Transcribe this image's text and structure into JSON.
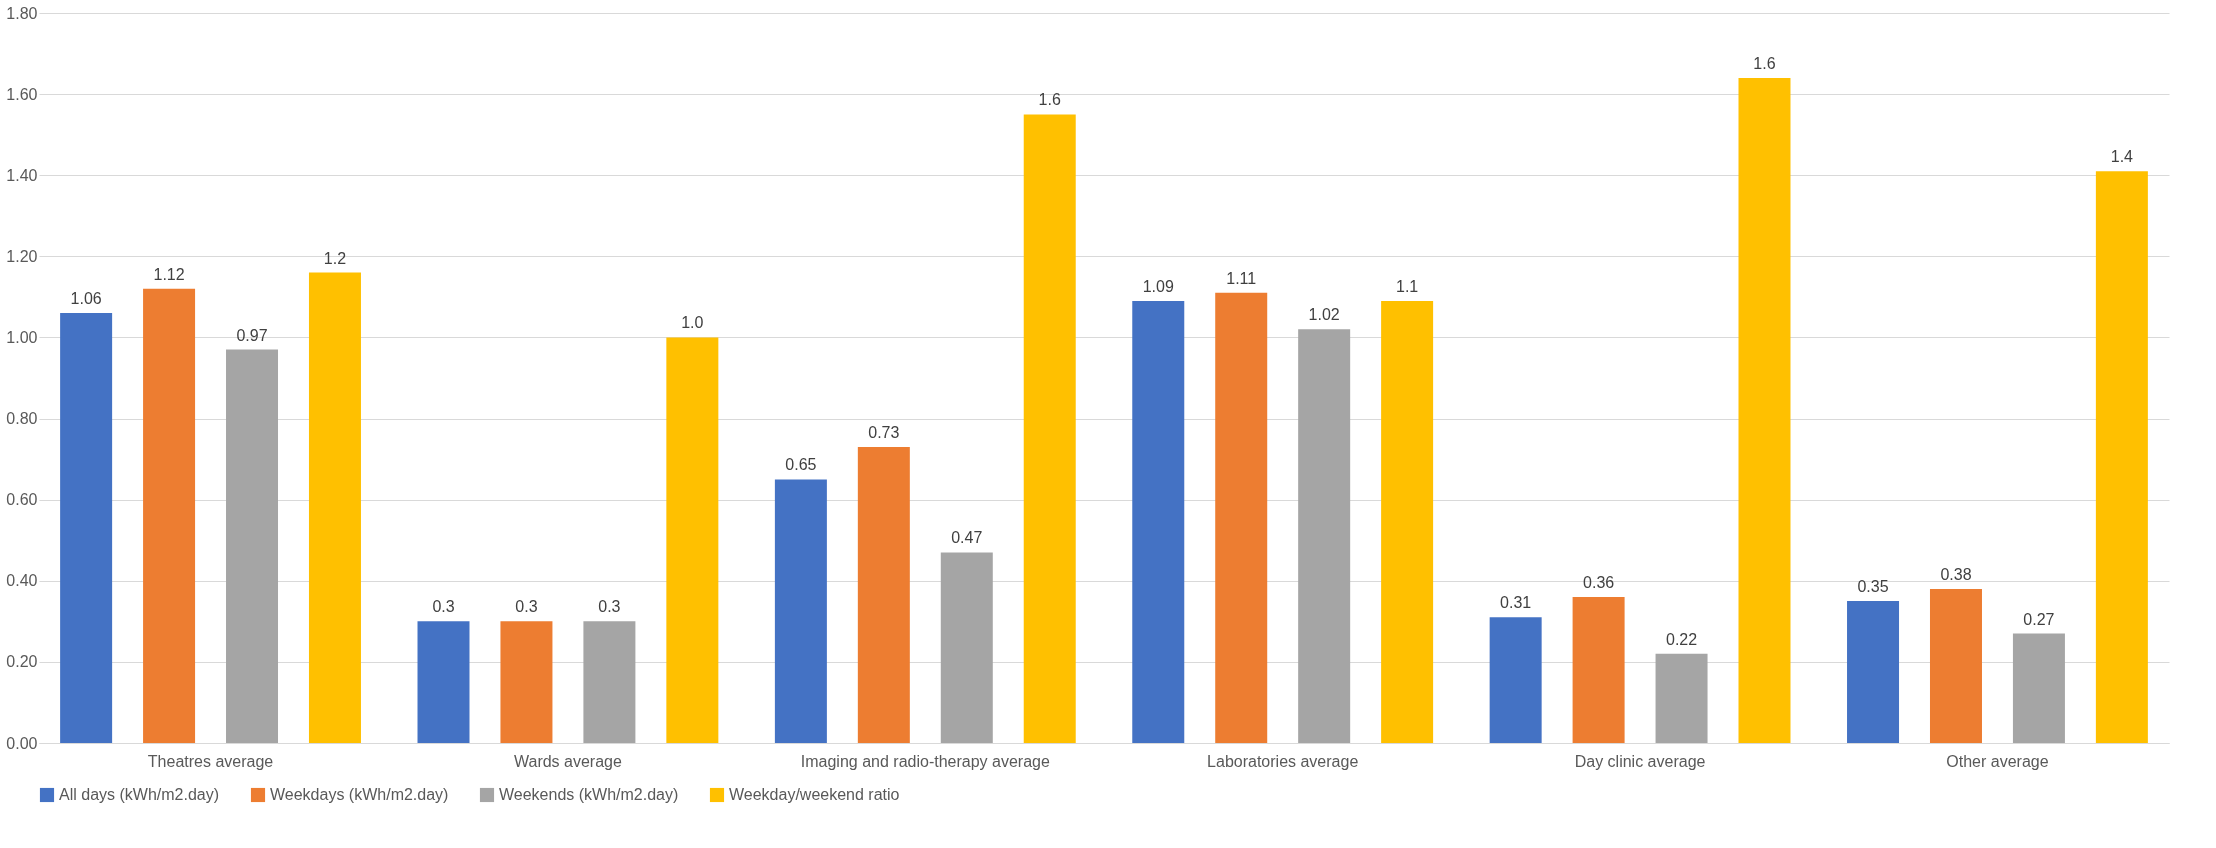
{
  "chart_data": {
    "type": "bar",
    "categories": [
      "Theatres average",
      "Wards average",
      "Imaging and radio-therapy average",
      "Laboratories average",
      "Day clinic average",
      "Other average"
    ],
    "series": [
      {
        "name": "All days (kWh/m2.day)",
        "color": "#4472c4",
        "values": [
          1.06,
          0.3,
          0.65,
          1.09,
          0.31,
          0.35
        ],
        "value_labels": [
          "1.06",
          "0.3",
          "0.65",
          "1.09",
          "0.31",
          "0.35"
        ]
      },
      {
        "name": "Weekdays (kWh/m2.day)",
        "color": "#ed7d31",
        "values": [
          1.12,
          0.3,
          0.73,
          1.11,
          0.36,
          0.38
        ],
        "value_labels": [
          "1.12",
          "0.3",
          "0.73",
          "1.11",
          "0.36",
          "0.38"
        ]
      },
      {
        "name": "Weekends (kWh/m2.day)",
        "color": "#a5a5a5",
        "values": [
          0.97,
          0.3,
          0.47,
          1.02,
          0.22,
          0.27
        ],
        "value_labels": [
          "0.97",
          "0.3",
          "0.47",
          "1.02",
          "0.22",
          "0.27"
        ]
      },
      {
        "name": "Weekday/weekend ratio",
        "color": "#ffc000",
        "values": [
          1.16,
          1.0,
          1.55,
          1.09,
          1.64,
          1.41
        ],
        "value_labels": [
          "1.2",
          "1.0",
          "1.6",
          "1.1",
          "1.6",
          "1.4"
        ]
      }
    ],
    "ylim": [
      0,
      1.8
    ],
    "yticks": [
      {
        "value": 0,
        "label": "0.00"
      },
      {
        "value": 0.2,
        "label": "0.20"
      },
      {
        "value": 0.4,
        "label": "0.40"
      },
      {
        "value": 0.6,
        "label": "0.60"
      },
      {
        "value": 0.8,
        "label": "0.80"
      },
      {
        "value": 1.0,
        "label": "1.00"
      },
      {
        "value": 1.2,
        "label": "1.20"
      },
      {
        "value": 1.4,
        "label": "1.40"
      },
      {
        "value": 1.6,
        "label": "1.60"
      },
      {
        "value": 1.8,
        "label": "1.80"
      }
    ],
    "grid": "y",
    "legend": "bottom"
  }
}
